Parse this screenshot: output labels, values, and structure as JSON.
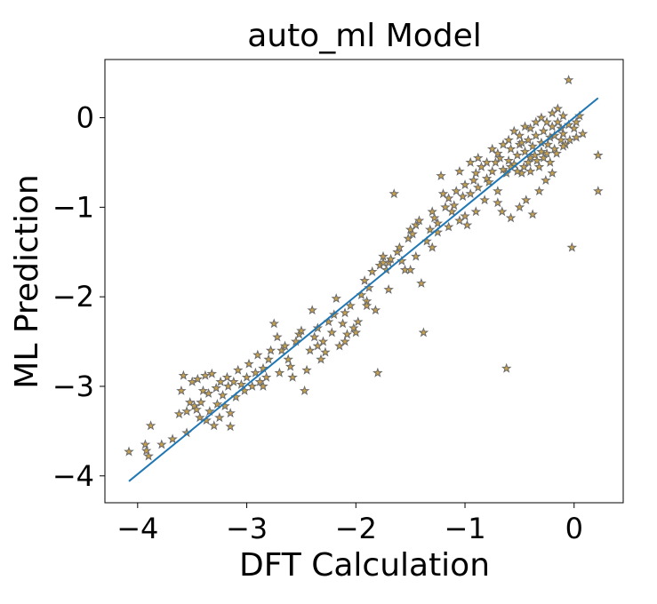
{
  "chart_data": {
    "type": "scatter",
    "title": "auto_ml Model",
    "xlabel": "DFT Calculation",
    "ylabel": "ML Prediction",
    "xlim": [
      -4.3,
      0.45
    ],
    "ylim": [
      -4.3,
      0.65
    ],
    "xticks": [
      -4,
      -3,
      -2,
      -1,
      0
    ],
    "yticks": [
      -4,
      -3,
      -2,
      -1,
      0
    ],
    "xtick_labels": [
      "−4",
      "−3",
      "−2",
      "−1",
      "0"
    ],
    "ytick_labels": [
      "−4",
      "−3",
      "−2",
      "−1",
      "0"
    ],
    "grid": false,
    "legend": "none",
    "marker": "star",
    "colors": {
      "marker_fill": "#c8a04a",
      "marker_edge": "#6b6b6b",
      "fit_line": "#1f77b4"
    },
    "fit_line": {
      "x": [
        -4.08,
        0.22
      ],
      "y": [
        -4.06,
        0.22
      ]
    },
    "points": [
      [
        -4.08,
        -3.73
      ],
      [
        -3.93,
        -3.65
      ],
      [
        -3.92,
        -3.72
      ],
      [
        -3.9,
        -3.78
      ],
      [
        -3.88,
        -3.44
      ],
      [
        -3.78,
        -3.65
      ],
      [
        -3.68,
        -3.59
      ],
      [
        -3.62,
        -3.31
      ],
      [
        -3.6,
        -3.05
      ],
      [
        -3.58,
        -2.88
      ],
      [
        -3.55,
        -3.52
      ],
      [
        -3.52,
        -3.18
      ],
      [
        -3.5,
        -2.95
      ],
      [
        -3.48,
        -3.22
      ],
      [
        -3.46,
        -3.26
      ],
      [
        -3.45,
        -2.92
      ],
      [
        -3.43,
        -3.35
      ],
      [
        -3.42,
        -3.18
      ],
      [
        -3.4,
        -3.05
      ],
      [
        -3.38,
        -2.88
      ],
      [
        -3.37,
        -3.38
      ],
      [
        -3.35,
        -3.08
      ],
      [
        -3.34,
        -3.28
      ],
      [
        -3.32,
        -2.86
      ],
      [
        -3.3,
        -3.44
      ],
      [
        -3.28,
        -3.02
      ],
      [
        -3.27,
        -3.2
      ],
      [
        -3.25,
        -3.35
      ],
      [
        -3.24,
        -2.95
      ],
      [
        -3.22,
        -3.1
      ],
      [
        -3.2,
        -3.22
      ],
      [
        -3.18,
        -2.9
      ],
      [
        -3.17,
        -3.0
      ],
      [
        -3.15,
        -3.3
      ],
      [
        -3.12,
        -2.95
      ],
      [
        -3.1,
        -3.12
      ],
      [
        -3.08,
        -2.82
      ],
      [
        -3.05,
        -2.98
      ],
      [
        -3.02,
        -3.05
      ],
      [
        -3.0,
        -2.9
      ],
      [
        -2.98,
        -2.75
      ],
      [
        -2.95,
        -3.0
      ],
      [
        -2.92,
        -2.85
      ],
      [
        -2.9,
        -2.65
      ],
      [
        -2.88,
        -2.95
      ],
      [
        -2.85,
        -2.8
      ],
      [
        -2.82,
        -2.9
      ],
      [
        -2.8,
        -2.7
      ],
      [
        -2.78,
        -2.6
      ],
      [
        -2.75,
        -2.3
      ],
      [
        -2.72,
        -2.45
      ],
      [
        -2.7,
        -2.85
      ],
      [
        -2.68,
        -2.6
      ],
      [
        -2.65,
        -2.55
      ],
      [
        -2.62,
        -2.7
      ],
      [
        -2.58,
        -2.9
      ],
      [
        -2.55,
        -2.5
      ],
      [
        -2.52,
        -2.42
      ],
      [
        -2.5,
        -2.38
      ],
      [
        -2.47,
        -3.05
      ],
      [
        -2.45,
        -2.82
      ],
      [
        -2.42,
        -2.6
      ],
      [
        -2.4,
        -2.15
      ],
      [
        -2.38,
        -2.45
      ],
      [
        -2.35,
        -2.35
      ],
      [
        -2.32,
        -2.7
      ],
      [
        -2.3,
        -2.5
      ],
      [
        -2.28,
        -2.62
      ],
      [
        -2.25,
        -2.28
      ],
      [
        -2.22,
        -2.4
      ],
      [
        -2.2,
        -2.2
      ],
      [
        -2.18,
        -2.02
      ],
      [
        -2.15,
        -2.55
      ],
      [
        -2.12,
        -2.3
      ],
      [
        -2.1,
        -2.18
      ],
      [
        -2.08,
        -2.42
      ],
      [
        -2.05,
        -2.1
      ],
      [
        -2.02,
        -2.35
      ],
      [
        -2.0,
        -2.4
      ],
      [
        -1.98,
        -2.28
      ],
      [
        -1.95,
        -1.98
      ],
      [
        -1.92,
        -1.82
      ],
      [
        -1.9,
        -2.05
      ],
      [
        -1.88,
        -1.9
      ],
      [
        -1.85,
        -1.72
      ],
      [
        -1.82,
        -2.15
      ],
      [
        -1.8,
        -2.85
      ],
      [
        -1.78,
        -1.65
      ],
      [
        -1.75,
        -1.55
      ],
      [
        -1.72,
        -1.7
      ],
      [
        -1.7,
        -1.62
      ],
      [
        -1.68,
        -1.58
      ],
      [
        -1.65,
        -0.85
      ],
      [
        -1.62,
        -1.5
      ],
      [
        -1.6,
        -1.45
      ],
      [
        -1.58,
        -1.6
      ],
      [
        -1.55,
        -1.7
      ],
      [
        -1.52,
        -1.35
      ],
      [
        -1.5,
        -1.25
      ],
      [
        -1.48,
        -1.3
      ],
      [
        -1.45,
        -1.2
      ],
      [
        -1.42,
        -1.15
      ],
      [
        -1.4,
        -1.85
      ],
      [
        -1.38,
        -2.4
      ],
      [
        -1.35,
        -1.38
      ],
      [
        -1.32,
        -1.25
      ],
      [
        -1.3,
        -1.05
      ],
      [
        -1.28,
        -1.12
      ],
      [
        -1.25,
        -1.18
      ],
      [
        -1.22,
        -0.65
      ],
      [
        -1.2,
        -0.85
      ],
      [
        -1.18,
        -1.0
      ],
      [
        -1.15,
        -0.9
      ],
      [
        -1.12,
        -1.05
      ],
      [
        -1.1,
        -0.98
      ],
      [
        -1.08,
        -0.82
      ],
      [
        -1.05,
        -1.15
      ],
      [
        -1.02,
        -0.88
      ],
      [
        -1.0,
        -0.75
      ],
      [
        -0.98,
        -1.2
      ],
      [
        -0.95,
        -0.85
      ],
      [
        -0.92,
        -0.7
      ],
      [
        -0.9,
        -0.62
      ],
      [
        -0.88,
        -0.78
      ],
      [
        -0.85,
        -0.55
      ],
      [
        -0.82,
        -0.92
      ],
      [
        -0.8,
        -0.68
      ],
      [
        -0.78,
        -0.72
      ],
      [
        -0.75,
        -0.6
      ],
      [
        -0.72,
        -0.5
      ],
      [
        -0.7,
        -0.82
      ],
      [
        -0.68,
        -0.45
      ],
      [
        -0.65,
        -0.58
      ],
      [
        -0.62,
        -2.8
      ],
      [
        -0.6,
        -0.48
      ],
      [
        -0.58,
        -0.35
      ],
      [
        -0.55,
        -0.52
      ],
      [
        -0.52,
        -0.42
      ],
      [
        -0.5,
        -0.3
      ],
      [
        -0.48,
        -0.62
      ],
      [
        -0.45,
        -0.38
      ],
      [
        -0.42,
        -0.25
      ],
      [
        -0.4,
        -0.45
      ],
      [
        -0.38,
        -0.32
      ],
      [
        -0.35,
        -0.2
      ],
      [
        -0.32,
        -0.55
      ],
      [
        -0.3,
        -0.28
      ],
      [
        -0.28,
        -0.15
      ],
      [
        -0.25,
        -0.4
      ],
      [
        -0.22,
        -0.22
      ],
      [
        -0.2,
        -0.1
      ],
      [
        -0.18,
        -0.35
      ],
      [
        -0.15,
        -0.05
      ],
      [
        -0.12,
        -0.25
      ],
      [
        -0.1,
        -0.18
      ],
      [
        -0.08,
        -0.3
      ],
      [
        -0.05,
        -0.08
      ],
      [
        -0.05,
        0.42
      ],
      [
        -0.02,
        -1.45
      ],
      [
        0.0,
        -0.12
      ],
      [
        0.02,
        -0.22
      ],
      [
        0.05,
        0.02
      ],
      [
        0.08,
        -0.18
      ],
      [
        0.22,
        -0.42
      ],
      [
        0.22,
        -0.82
      ],
      [
        -1.75,
        -1.62
      ],
      [
        -1.5,
        -1.7
      ],
      [
        -1.25,
        -1.28
      ],
      [
        -1.05,
        -0.6
      ],
      [
        -0.95,
        -0.5
      ],
      [
        -0.88,
        -0.45
      ],
      [
        -0.8,
        -0.5
      ],
      [
        -0.75,
        -0.35
      ],
      [
        -0.7,
        -0.4
      ],
      [
        -0.65,
        -0.3
      ],
      [
        -0.6,
        -0.25
      ],
      [
        -0.55,
        -0.15
      ],
      [
        -0.5,
        -0.2
      ],
      [
        -0.45,
        -0.1
      ],
      [
        -0.4,
        -0.12
      ],
      [
        -0.35,
        -0.05
      ],
      [
        -0.3,
        0.0
      ],
      [
        -0.25,
        -0.05
      ],
      [
        -0.2,
        0.05
      ],
      [
        -0.15,
        0.1
      ],
      [
        -0.1,
        0.02
      ],
      [
        -0.48,
        -0.28
      ],
      [
        -0.42,
        -0.5
      ],
      [
        -0.36,
        -0.42
      ],
      [
        -0.3,
        -0.38
      ],
      [
        -0.24,
        -0.3
      ],
      [
        -0.18,
        -0.2
      ],
      [
        -0.12,
        -0.12
      ],
      [
        -0.62,
        -0.62
      ],
      [
        -0.58,
        -0.55
      ],
      [
        -0.52,
        -0.6
      ],
      [
        -0.46,
        -0.55
      ],
      [
        -0.4,
        -0.6
      ],
      [
        -0.34,
        -0.48
      ],
      [
        -0.28,
        -0.45
      ],
      [
        -0.22,
        -0.5
      ],
      [
        -0.16,
        -0.4
      ],
      [
        -0.1,
        -0.32
      ],
      [
        -0.04,
        -0.25
      ],
      [
        0.02,
        -0.05
      ],
      [
        -0.7,
        -0.95
      ],
      [
        -0.66,
        -1.05
      ],
      [
        -0.58,
        -1.12
      ],
      [
        -0.5,
        -1.0
      ],
      [
        -0.44,
        -0.92
      ],
      [
        -0.38,
        -1.08
      ],
      [
        -0.32,
        -0.82
      ],
      [
        -0.26,
        -0.7
      ],
      [
        -0.2,
        -0.62
      ],
      [
        -3.55,
        -3.28
      ],
      [
        -3.15,
        -3.45
      ],
      [
        -2.85,
        -3.0
      ],
      [
        -2.6,
        -2.78
      ],
      [
        -2.35,
        -2.55
      ],
      [
        -2.1,
        -2.5
      ],
      [
        -1.9,
        -2.1
      ],
      [
        -1.7,
        -1.92
      ],
      [
        -1.45,
        -1.55
      ],
      [
        -1.3,
        -1.45
      ],
      [
        -1.15,
        -1.22
      ],
      [
        -1.0,
        -1.1
      ],
      [
        -0.9,
        -1.05
      ]
    ]
  }
}
